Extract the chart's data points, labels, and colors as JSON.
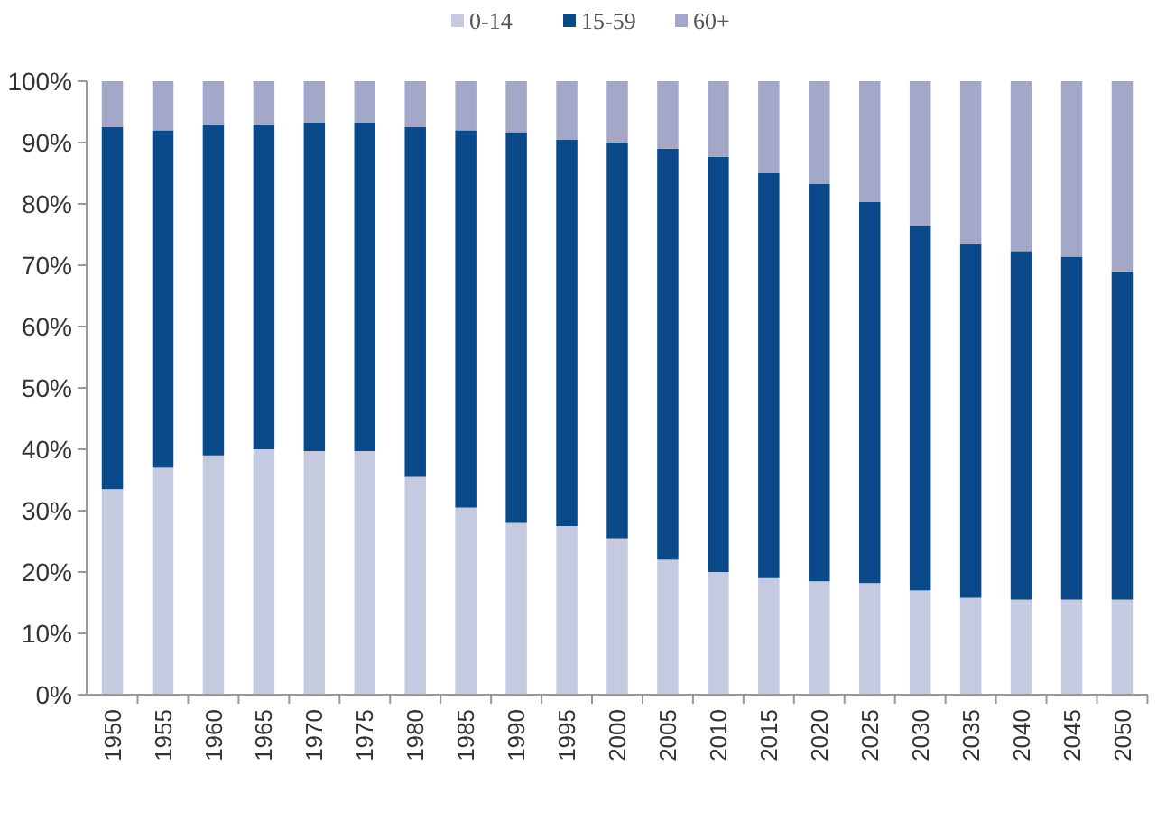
{
  "chart_data": {
    "type": "bar",
    "stacked": true,
    "legend": "top",
    "grid": false,
    "categories": [
      "1950",
      "1955",
      "1960",
      "1965",
      "1970",
      "1975",
      "1980",
      "1985",
      "1990",
      "1995",
      "2000",
      "2005",
      "2010",
      "2015",
      "2020",
      "2025",
      "2030",
      "2035",
      "2040",
      "2045",
      "2050"
    ],
    "ylim": [
      0,
      100
    ],
    "yticks": [
      {
        "value": 0,
        "label": "0%"
      },
      {
        "value": 10,
        "label": "10%"
      },
      {
        "value": 20,
        "label": "20%"
      },
      {
        "value": 30,
        "label": "30%"
      },
      {
        "value": 40,
        "label": "40%"
      },
      {
        "value": 50,
        "label": "50%"
      },
      {
        "value": 60,
        "label": "60%"
      },
      {
        "value": 70,
        "label": "70%"
      },
      {
        "value": 80,
        "label": "80%"
      },
      {
        "value": 90,
        "label": "90%"
      },
      {
        "value": 100,
        "label": "100%"
      }
    ],
    "series": [
      {
        "name": "0-14",
        "color": "#c5cae0",
        "values": [
          33.5,
          37,
          39,
          40,
          39.7,
          39.7,
          35.5,
          30.5,
          28,
          27.5,
          25.5,
          22,
          20,
          19,
          18.5,
          18.2,
          17,
          15.8,
          15.5,
          15.5,
          15.5
        ]
      },
      {
        "name": "15-59",
        "color": "#0b4a8a",
        "values": [
          59,
          55,
          54,
          53,
          53.6,
          53.6,
          57,
          61.5,
          63.7,
          63,
          64.5,
          67,
          67.7,
          66,
          64.8,
          62.1,
          59.4,
          57.6,
          56.8,
          55.9,
          53.5
        ]
      },
      {
        "name": "60+",
        "color": "#a3a8c8",
        "values": [
          7.5,
          8,
          7,
          7,
          6.7,
          6.7,
          7.5,
          8,
          8.3,
          9.5,
          10,
          11,
          12.3,
          15,
          16.7,
          19.7,
          23.6,
          26.6,
          27.7,
          28.6,
          31
        ]
      }
    ]
  }
}
